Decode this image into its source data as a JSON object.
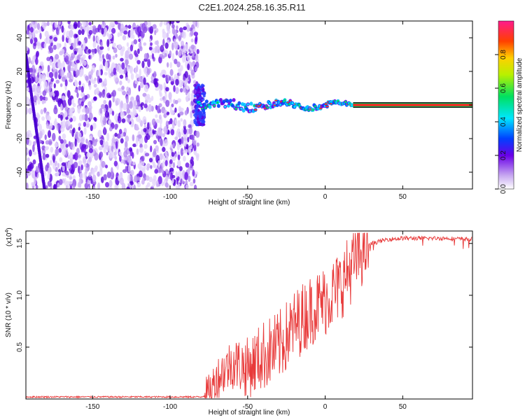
{
  "title": "C2E1.2024.258.16.35.R11",
  "chart_data": [
    {
      "type": "heatmap",
      "title": "C2E1.2024.258.16.35.R11",
      "xlabel": "Height of straight line (km)",
      "ylabel": "Frequency (Hz)",
      "xlim": [
        -193,
        95
      ],
      "ylim": [
        -50,
        50
      ],
      "x_ticks": [
        "-150",
        "-100",
        "-50",
        "0",
        "50"
      ],
      "y_ticks": [
        "-40",
        "-20",
        "0",
        "20",
        "40"
      ],
      "colorbar": {
        "label": "Normalized spectral amplitude",
        "ticks": [
          "0.0",
          "0.2",
          "0.4",
          "0.6",
          "0.8"
        ],
        "range": [
          0,
          1
        ]
      },
      "features": {
        "noise_region_x": [
          -193,
          -82
        ],
        "signal_start_x": -82,
        "steady_line_start_x": 18,
        "center_frequency": 0
      }
    },
    {
      "type": "line",
      "xlabel": "Height of straight line (km)",
      "ylabel": "SNR (10 * v/v)",
      "multiplier_label": "(x10",
      "multiplier_exp": "4",
      "xlim": [
        -193,
        95
      ],
      "ylim": [
        0,
        1.62
      ],
      "x_ticks": [
        "-150",
        "-100",
        "-50",
        "0",
        "50"
      ],
      "y_ticks": [
        "0.5",
        "1.0",
        "1.5"
      ],
      "color": "#e83a3a",
      "series": [
        {
          "x": [
            -193,
            -150,
            -100,
            -80,
            -75,
            -70,
            -60,
            -50,
            -40,
            -30,
            -20,
            -10,
            0,
            10,
            20,
            25,
            30,
            40,
            50,
            60,
            70,
            80,
            90,
            95
          ],
          "values": [
            0.02,
            0.02,
            0.02,
            0.02,
            0.05,
            0.2,
            0.35,
            0.3,
            0.42,
            0.5,
            0.7,
            0.85,
            0.95,
            1.1,
            1.35,
            1.45,
            1.5,
            1.54,
            1.55,
            1.55,
            1.55,
            1.55,
            1.54,
            1.54
          ]
        }
      ]
    }
  ]
}
